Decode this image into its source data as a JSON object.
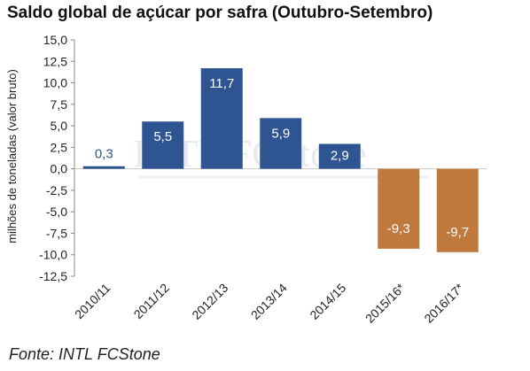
{
  "chart_data": {
    "type": "bar",
    "title": "Saldo global de açúcar por safra (Outubro-Setembro)",
    "ylabel": "milhões de toneladas (valor bruto)",
    "xlabel": "",
    "categories": [
      "2010/11",
      "2011/12",
      "2012/13",
      "2013/14",
      "2014/15",
      "2015/16*",
      "2016/17*"
    ],
    "values": [
      0.3,
      5.5,
      11.7,
      5.9,
      2.9,
      -9.3,
      -9.7
    ],
    "data_labels": [
      "0,3",
      "5,5",
      "11,7",
      "5,9",
      "2,9",
      "-9,3",
      "-9,7"
    ],
    "ylim": [
      -12.5,
      15.0
    ],
    "yticks": [
      "15,0",
      "12,5",
      "10,0",
      "7,5",
      "5,0",
      "2,5",
      "0,0",
      "-2,5",
      "-5,0",
      "-7,5",
      "-10,0",
      "-12,5"
    ],
    "ytick_values": [
      15.0,
      12.5,
      10.0,
      7.5,
      5.0,
      2.5,
      0.0,
      -2.5,
      -5.0,
      -7.5,
      -10.0,
      -12.5
    ],
    "grid": false,
    "colors": {
      "positive": "#2e5591",
      "negative": "#c07a3e",
      "positive_label": "#2e5591"
    },
    "source": "Fonte: INTL FCStone",
    "watermark": "INTL FCStone"
  }
}
